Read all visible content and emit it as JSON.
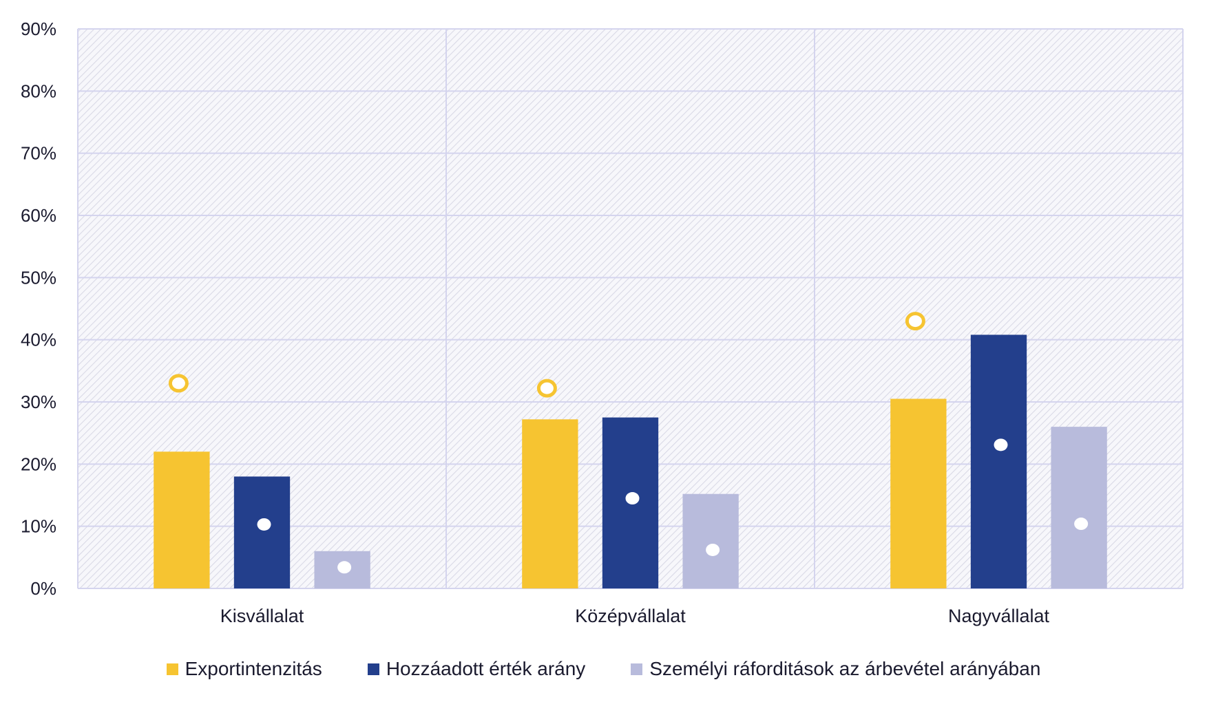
{
  "chart_data": {
    "type": "bar",
    "categories": [
      "Kisvállalat",
      "Középvállalat",
      "Nagyvállalat"
    ],
    "series": [
      {
        "name": "Exportintenzitás",
        "color": "#f6c431",
        "values": [
          22,
          27.2,
          30.5
        ],
        "marker": "ring",
        "marker_values": [
          33,
          32.2,
          43
        ]
      },
      {
        "name": "Hozzáadott érték arány",
        "color": "#233f8c",
        "values": [
          18,
          27.5,
          40.8
        ],
        "marker": "dot",
        "marker_values": [
          10.3,
          14.5,
          23.1
        ]
      },
      {
        "name": "Személyi ráforditások az árbevétel arányában",
        "color": "#b8bbdc",
        "values": [
          6,
          15.2,
          26
        ],
        "marker": "dot",
        "marker_values": [
          3.4,
          6.2,
          10.4
        ]
      }
    ],
    "yticks": [
      "0%",
      "10%",
      "20%",
      "30%",
      "40%",
      "50%",
      "60%",
      "70%",
      "80%",
      "90%"
    ],
    "ylim": [
      0,
      90
    ],
    "title": "",
    "xlabel": "",
    "ylabel": "",
    "legend_position": "bottom",
    "grid": true
  }
}
